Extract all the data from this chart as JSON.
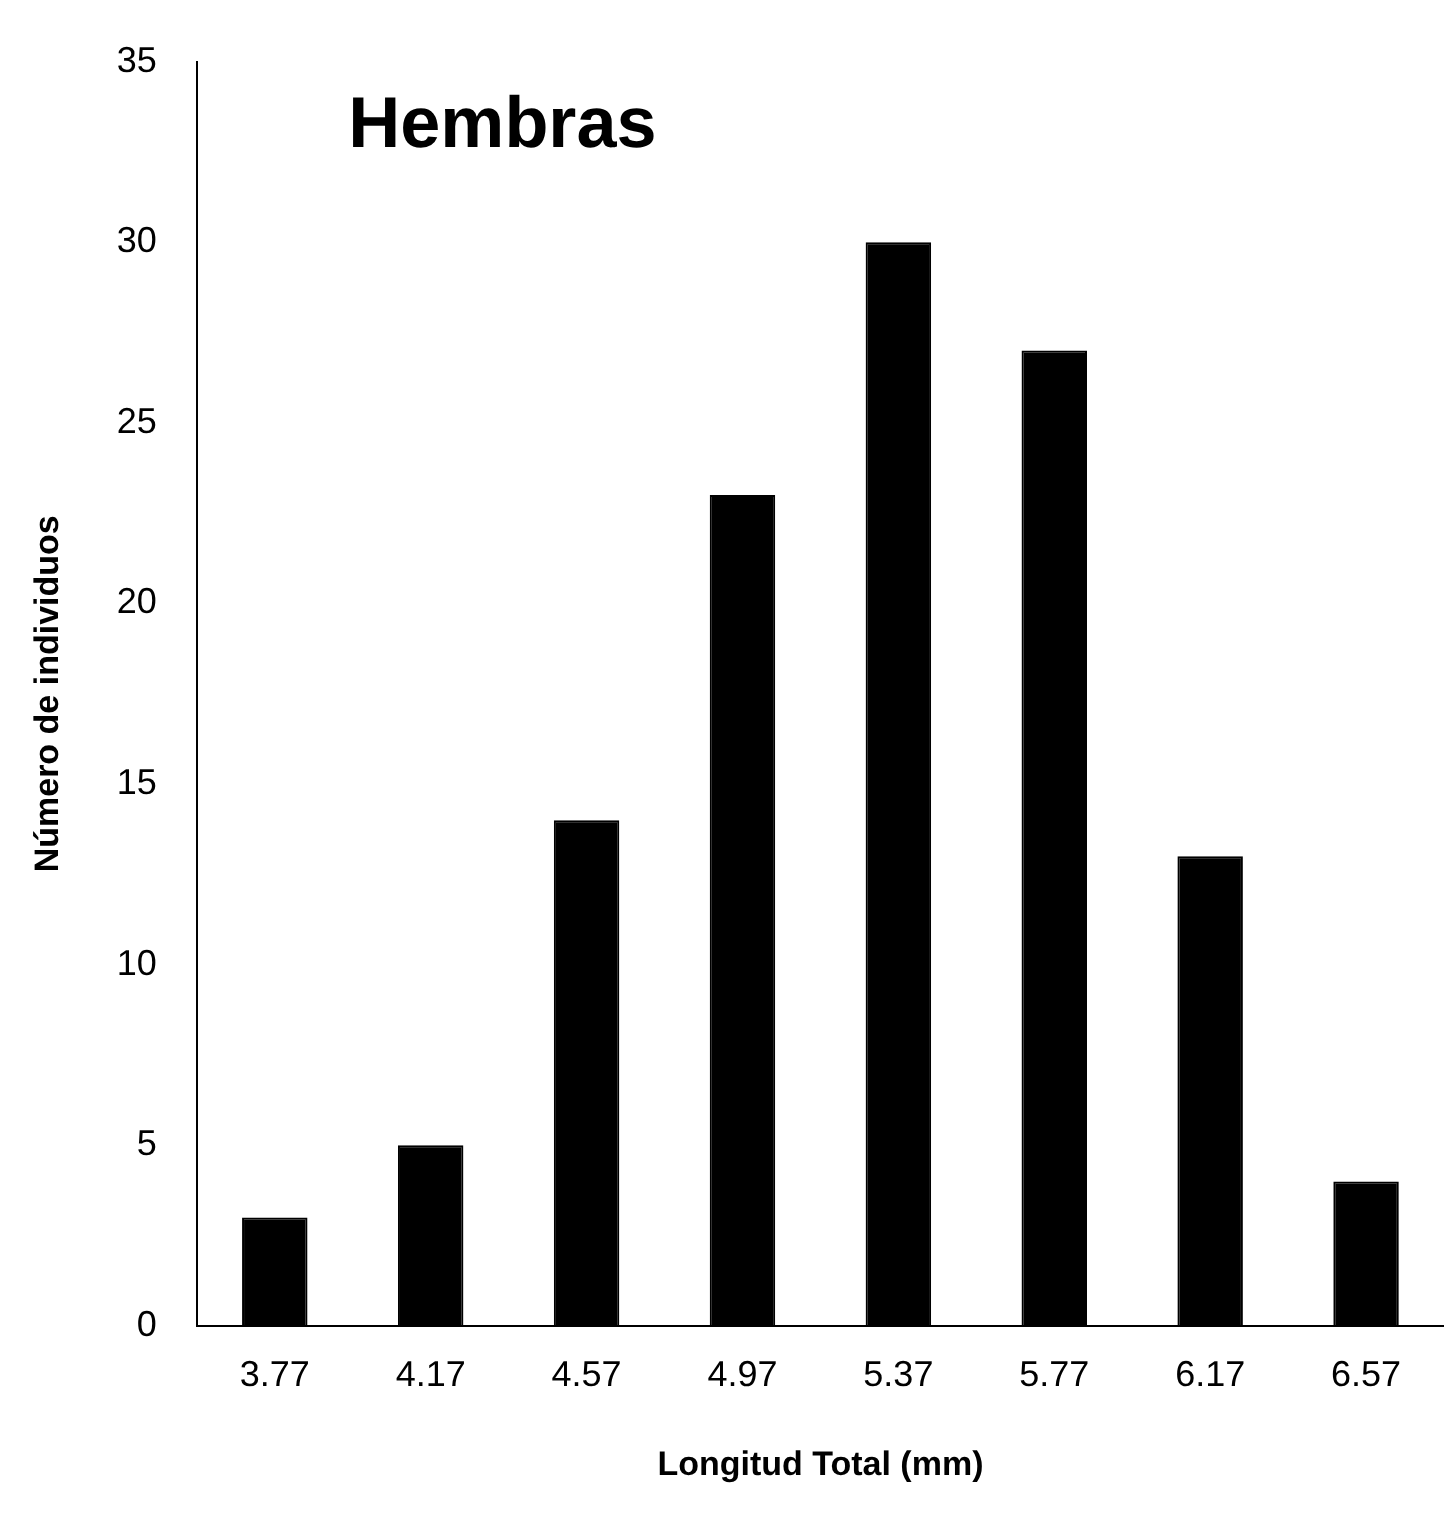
{
  "chart_data": {
    "type": "bar",
    "title": "Hembras",
    "xlabel": "Longitud Total (mm)",
    "ylabel": "Número de individuos",
    "categories": [
      "3.77",
      "4.17",
      "4.57",
      "4.97",
      "5.37",
      "5.77",
      "6.17",
      "6.57"
    ],
    "values": [
      3,
      5,
      14,
      23,
      30,
      27,
      13,
      4
    ],
    "color": "#000000",
    "ylim": [
      0,
      35
    ],
    "yticks": [
      0,
      5,
      10,
      15,
      20,
      25,
      30,
      35
    ],
    "grid": false,
    "legend": false
  }
}
